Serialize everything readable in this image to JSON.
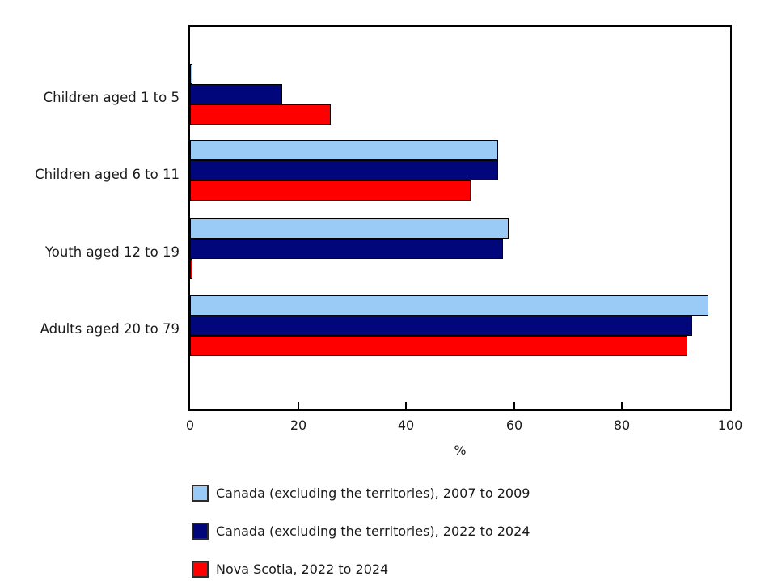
{
  "chart_data": {
    "type": "bar",
    "orientation": "horizontal",
    "title": "",
    "categories": [
      "Children aged 1 to 5",
      "Children aged 6 to 11",
      "Youth aged 12 to 19",
      "Adults aged 20 to 79"
    ],
    "series": [
      {
        "name": "Canada (excluding the territories), 2007 to 2009",
        "color": "#99CBF6",
        "values": [
          0,
          57,
          59,
          96
        ]
      },
      {
        "name": "Canada (excluding the territories), 2022 to 2024",
        "color": "#01077A",
        "values": [
          17,
          57,
          58,
          93
        ]
      },
      {
        "name": "Nova Scotia, 2022 to 2024",
        "color": "#FE0000",
        "values": [
          26,
          52,
          0,
          92
        ]
      }
    ],
    "xlabel": "%",
    "xlim": [
      0,
      100
    ],
    "xticks": [
      0,
      20,
      40,
      60,
      80,
      100
    ],
    "grid": false,
    "legend_position": "bottom-left",
    "bar_border_color": "#000000",
    "plot_border_color": "#000000"
  }
}
